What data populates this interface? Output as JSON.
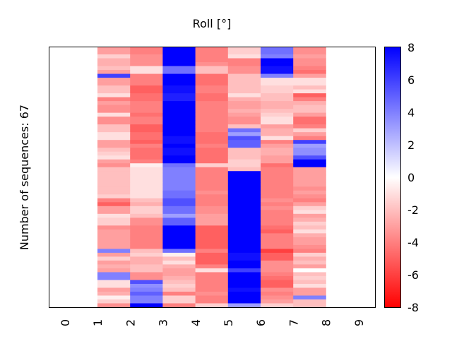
{
  "chart_data": {
    "type": "heatmap",
    "title": "Roll [°]",
    "xlabel": "",
    "ylabel": "Number of sequences: 67",
    "x_tick_labels": [
      "0",
      "1",
      "2",
      "3",
      "4",
      "5",
      "6",
      "7",
      "8",
      "9"
    ],
    "x_ticks": [
      0,
      1,
      2,
      3,
      4,
      5,
      6,
      7,
      8,
      9
    ],
    "x_range": [
      -0.5,
      9.5
    ],
    "data_columns": [
      1,
      2,
      3,
      4,
      5,
      6,
      7
    ],
    "n_rows": 67,
    "colormap": "bwr",
    "colormap_colors": {
      "low": "#ff0000",
      "mid": "#ffffff",
      "high": "#0000ff"
    },
    "vmin": -8,
    "vmax": 8,
    "colorbar": {
      "ticks": [
        8,
        6,
        4,
        2,
        0,
        -2,
        -4,
        -6,
        -8
      ],
      "tick_labels": [
        "8",
        "6",
        "4",
        "2",
        "0",
        "-2",
        "-4",
        "-6",
        "-8"
      ],
      "placement": "right"
    },
    "grid": false,
    "values": [
      [
        -3,
        -4,
        8,
        -4,
        -1.5,
        4.5,
        -3.5
      ],
      [
        -3,
        -4,
        8,
        -4,
        -1.5,
        4.5,
        -3.5
      ],
      [
        -1.5,
        -3.5,
        8,
        -4,
        -1,
        4,
        -3
      ],
      [
        -2.5,
        -3.5,
        8,
        -4,
        -4,
        8,
        -3.5
      ],
      [
        -2.5,
        -3.5,
        8,
        -3.5,
        -4,
        8,
        -3.5
      ],
      [
        -2,
        -1,
        4.5,
        -2,
        -3.5,
        7.5,
        -4
      ],
      [
        -3,
        -1,
        4.5,
        -2,
        -3.5,
        7.5,
        -4.5
      ],
      [
        6,
        -4,
        8,
        -4.5,
        -2,
        4,
        -3
      ],
      [
        -3,
        -4,
        8,
        -4.5,
        -2,
        -1,
        -1
      ],
      [
        -3,
        -4,
        8,
        -4.5,
        -2,
        -1,
        -1
      ],
      [
        -2,
        -5,
        7.5,
        -4,
        -2,
        -1.5,
        -2
      ],
      [
        -2,
        -5,
        7.5,
        -4,
        -2,
        -1.5,
        -1
      ],
      [
        -1,
        -4.5,
        7,
        -4.5,
        -1,
        -2,
        -5
      ],
      [
        -4,
        -4.5,
        7,
        -4.5,
        -2.5,
        -2,
        -4
      ],
      [
        -3,
        -4,
        8,
        -4,
        -3,
        -2.5,
        -2.5
      ],
      [
        -3.5,
        -4,
        8,
        -4,
        -3,
        -2.5,
        -2
      ],
      [
        -3.5,
        -4,
        8,
        -4,
        -2.5,
        -2,
        -2
      ],
      [
        -1,
        -4.5,
        8,
        -4,
        -3,
        -1.5,
        -3
      ],
      [
        -3.5,
        -4,
        8,
        -4,
        -3.5,
        -1,
        -4.5
      ],
      [
        -3.5,
        -4,
        8,
        -4,
        -3.5,
        -1,
        -4.5
      ],
      [
        -2,
        -5,
        8,
        -4,
        -2,
        -3,
        -4
      ],
      [
        -2,
        -5,
        8,
        -4,
        4.5,
        -2.5,
        -1.5
      ],
      [
        -1,
        -4.5,
        8,
        -4.5,
        3,
        -2.5,
        -3
      ],
      [
        -1,
        -4.5,
        7.5,
        -4.5,
        5.5,
        -1,
        -4
      ],
      [
        -3,
        -5,
        7.5,
        -4.5,
        5,
        -4,
        6
      ],
      [
        -3,
        -4,
        8,
        -4,
        5,
        -3,
        3
      ],
      [
        -2,
        -4.5,
        7.5,
        -4.5,
        -2,
        -2.5,
        3.5
      ],
      [
        -1.5,
        -4.5,
        7.5,
        -4.5,
        -2,
        -2.5,
        3.5
      ],
      [
        -1,
        -4.5,
        8,
        -4.5,
        -2,
        -3,
        5.5
      ],
      [
        -3,
        -4,
        8,
        -4.5,
        -1.5,
        -3,
        8
      ],
      [
        -3.5,
        -0.5,
        4.5,
        -1.5,
        -1.5,
        -4.5,
        8
      ],
      [
        -2,
        -1,
        4,
        -4,
        -2,
        -4,
        -3
      ],
      [
        -2,
        -1,
        4,
        -4,
        8,
        -4,
        -3
      ],
      [
        -2,
        -1,
        4,
        -4,
        8,
        -4,
        -3
      ],
      [
        -2,
        -1,
        4,
        -4,
        8,
        -4,
        -3
      ],
      [
        -2,
        -1,
        4,
        -4,
        8,
        -4,
        -3
      ],
      [
        -2,
        -1,
        4,
        -4,
        8,
        -4,
        -3.5
      ],
      [
        -2,
        -1,
        4.5,
        -3.5,
        8,
        -4,
        -3
      ],
      [
        -1.5,
        -1,
        4.5,
        -4,
        8,
        -4,
        -3.5
      ],
      [
        -4,
        -2,
        5.5,
        -4,
        8,
        -3.5,
        -4
      ],
      [
        -5,
        -2.5,
        5.5,
        -4,
        8,
        -4,
        -3
      ],
      [
        -3,
        -1.5,
        4.5,
        -3.5,
        8,
        -3.5,
        -1.5
      ],
      [
        -3,
        -1.5,
        4.5,
        -3.5,
        8,
        -4,
        -1
      ],
      [
        -1,
        -2,
        3,
        -3,
        8,
        -4,
        -3
      ],
      [
        -1.5,
        -3.5,
        5,
        -3,
        8,
        -4,
        -2.5
      ],
      [
        -1.5,
        -3.5,
        5,
        -3,
        8,
        -4,
        -1.5
      ],
      [
        -3.5,
        -4,
        8,
        -5,
        8,
        -4.5,
        -2
      ],
      [
        -3,
        -4,
        8,
        -5,
        8,
        -5,
        -1
      ],
      [
        -3,
        -4,
        8,
        -5,
        8,
        -4,
        -2.5
      ],
      [
        -3,
        -4,
        8,
        -5,
        8,
        -4,
        -3
      ],
      [
        -3,
        -4,
        8,
        -5,
        8,
        -4,
        -3
      ],
      [
        -3,
        -4,
        8,
        -5,
        8,
        -4,
        -3.5
      ],
      [
        4,
        -2,
        4.5,
        -4,
        8,
        -6,
        -4
      ],
      [
        -3,
        -1.5,
        -0.5,
        -5,
        7.5,
        -5,
        -1.5
      ],
      [
        -1.5,
        -2.5,
        -2,
        -5,
        7.5,
        -5,
        -2.5
      ],
      [
        -3,
        -2.5,
        -1,
        -5,
        8,
        -3.5,
        -2
      ],
      [
        -2.5,
        -2,
        -2.5,
        -4,
        8,
        -3.5,
        -3
      ],
      [
        -3,
        -2,
        -3,
        -1,
        6,
        -3.5,
        0
      ],
      [
        4,
        -3.5,
        -3,
        -4,
        8,
        -4,
        -2
      ],
      [
        4,
        -3.5,
        -2.5,
        -4,
        8,
        -4.5,
        -1.5
      ],
      [
        -1,
        5.5,
        -2,
        -4,
        8,
        -5,
        -2
      ],
      [
        -1,
        3.5,
        -1.5,
        -4,
        8,
        -5,
        -1
      ],
      [
        -3,
        4,
        -2,
        -4,
        7.5,
        -3.5,
        -3
      ],
      [
        -2.5,
        5,
        -4,
        -3.5,
        8,
        -4,
        -3
      ],
      [
        -0.5,
        4,
        -1.5,
        -4,
        8,
        -3.5,
        4
      ],
      [
        -1.5,
        4,
        -1.5,
        -4,
        8,
        -3,
        -2
      ],
      [
        -3.5,
        8,
        -4,
        -1.5,
        3,
        -1.5,
        -2
      ]
    ]
  }
}
